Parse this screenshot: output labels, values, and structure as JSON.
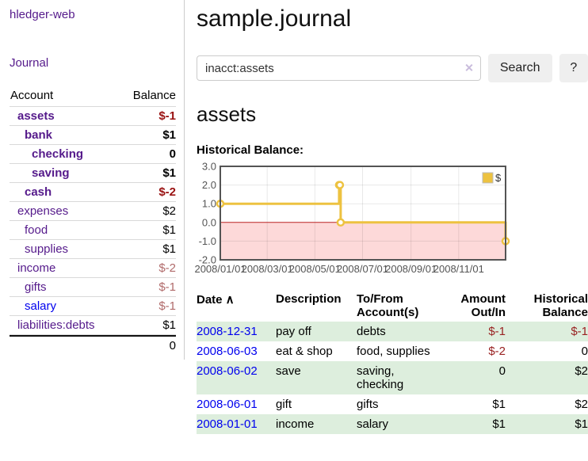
{
  "app": {
    "title": "hledger-web"
  },
  "sidebar": {
    "journal_link": "Journal",
    "table": {
      "headers": {
        "account": "Account",
        "balance": "Balance"
      },
      "rows": [
        {
          "account": "assets",
          "balance": "$-1",
          "indent": 1,
          "bold": true
        },
        {
          "account": "bank",
          "balance": "$1",
          "indent": 2,
          "bold": true
        },
        {
          "account": "checking",
          "balance": "0",
          "indent": 3,
          "bold": true
        },
        {
          "account": "saving",
          "balance": "$1",
          "indent": 3,
          "bold": true
        },
        {
          "account": "cash",
          "balance": "$-2",
          "indent": 2,
          "bold": true
        },
        {
          "account": "expenses",
          "balance": "$2",
          "indent": 1,
          "bold": false
        },
        {
          "account": "food",
          "balance": "$1",
          "indent": 2,
          "bold": false
        },
        {
          "account": "supplies",
          "balance": "$1",
          "indent": 2,
          "bold": false
        },
        {
          "account": "income",
          "balance": "$-2",
          "indent": 1,
          "bold": false
        },
        {
          "account": "gifts",
          "balance": "$-1",
          "indent": 2,
          "bold": false
        },
        {
          "account": "salary",
          "balance": "$-1",
          "indent": 2,
          "bold": false,
          "blue": true
        },
        {
          "account": "liabilities:debts",
          "balance": "$1",
          "indent": 1,
          "bold": false
        }
      ],
      "total": "0"
    }
  },
  "header": {
    "title": "sample.journal"
  },
  "search": {
    "value": "inacct:assets",
    "clear_icon": "✕",
    "button_label": "Search",
    "help_label": "?"
  },
  "account_page": {
    "heading": "assets",
    "chart_label": "Historical Balance:"
  },
  "chart_data": {
    "type": "line",
    "step": true,
    "title": "Historical Balance",
    "series": [
      {
        "name": "$",
        "color": "#edc240",
        "points": [
          [
            "2008/01/01",
            1
          ],
          [
            "2008/06/01",
            2
          ],
          [
            "2008/06/02",
            2
          ],
          [
            "2008/06/03",
            0
          ],
          [
            "2008/12/31",
            -1
          ]
        ]
      }
    ],
    "x_ticks": [
      "2008/01/01",
      "2008/03/01",
      "2008/05/01",
      "2008/07/01",
      "2008/09/01",
      "2008/11/01"
    ],
    "y_ticks": [
      3,
      2,
      1,
      0,
      -1,
      -2
    ],
    "y_tick_labels": [
      "3.0",
      "2.0",
      "1.0",
      "0.0",
      "-1.0",
      "-2.0"
    ],
    "xlim": [
      "2008/01/01",
      "2008/12/31"
    ],
    "ylim": [
      -2,
      3
    ],
    "grid": true,
    "legend_position": "top-right",
    "legend_label": "$",
    "zero_line_color": "#bb2222",
    "negative_region_color": "#fdd9d9",
    "border_color": "#545454",
    "tick_label_color": "#545454"
  },
  "register": {
    "headers": [
      {
        "label": "Date",
        "sort_indicator": "∧",
        "align": "left"
      },
      {
        "label": "Description",
        "align": "left"
      },
      {
        "label": "To/From Account(s)",
        "align": "left"
      },
      {
        "label": "Amount Out/In",
        "align": "right"
      },
      {
        "label": "Historical Balance",
        "align": "right"
      }
    ],
    "rows": [
      {
        "date": "2008-12-31",
        "description": "pay off",
        "accounts": "debts",
        "amount": "$-1",
        "balance": "$-1"
      },
      {
        "date": "2008-06-03",
        "description": "eat & shop",
        "accounts": "food, supplies",
        "amount": "$-2",
        "balance": "0"
      },
      {
        "date": "2008-06-02",
        "description": "save",
        "accounts": "saving, checking",
        "amount": "0",
        "balance": "$2"
      },
      {
        "date": "2008-06-01",
        "description": "gift",
        "accounts": "gifts",
        "amount": "$1",
        "balance": "$2"
      },
      {
        "date": "2008-01-01",
        "description": "income",
        "accounts": "salary",
        "amount": "$1",
        "balance": "$1"
      }
    ]
  }
}
